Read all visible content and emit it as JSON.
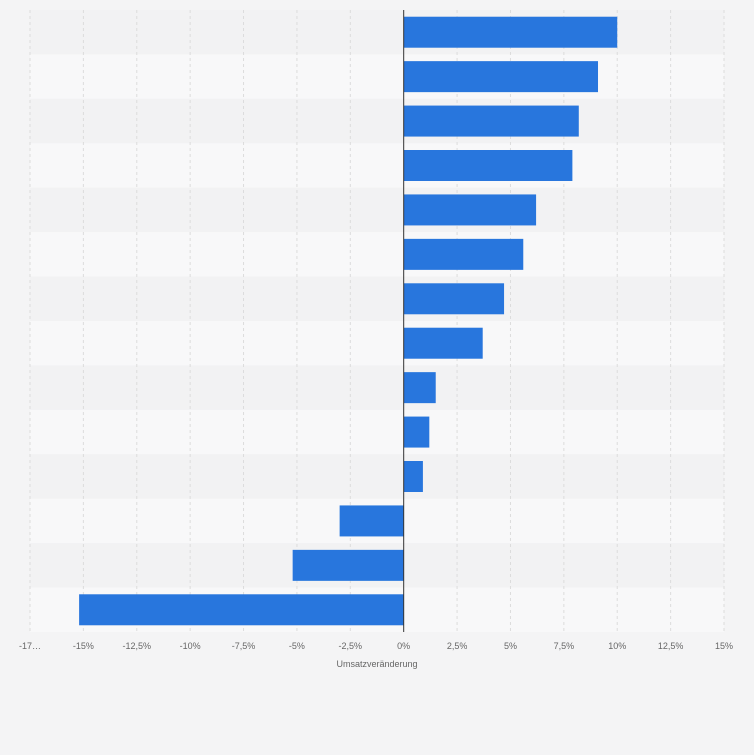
{
  "chart_data": {
    "type": "bar",
    "orientation": "horizontal",
    "title": "",
    "xlabel": "Umsatzveränderung",
    "ylabel": "",
    "categories": [
      "",
      "",
      "",
      "",
      "",
      "",
      "",
      "",
      "",
      "",
      "",
      "",
      "",
      ""
    ],
    "values": [
      10.0,
      9.1,
      8.2,
      7.9,
      6.2,
      5.6,
      4.7,
      3.7,
      1.5,
      1.2,
      0.9,
      -3.0,
      -5.2,
      -15.2
    ],
    "xlim": [
      -17.5,
      15
    ],
    "x_ticks": [
      -17.5,
      -15,
      -12.5,
      -10,
      -7.5,
      -5,
      -2.5,
      0,
      2.5,
      5,
      7.5,
      10,
      12.5,
      15
    ],
    "x_tick_labels": [
      "-17…",
      "-15%",
      "-12,5%",
      "-10%",
      "-7,5%",
      "-5%",
      "-2,5%",
      "0%",
      "2,5%",
      "5%",
      "7,5%",
      "10%",
      "12,5%",
      "15%"
    ],
    "grid": true,
    "bar_color": "#2876dd",
    "legend": "none"
  }
}
